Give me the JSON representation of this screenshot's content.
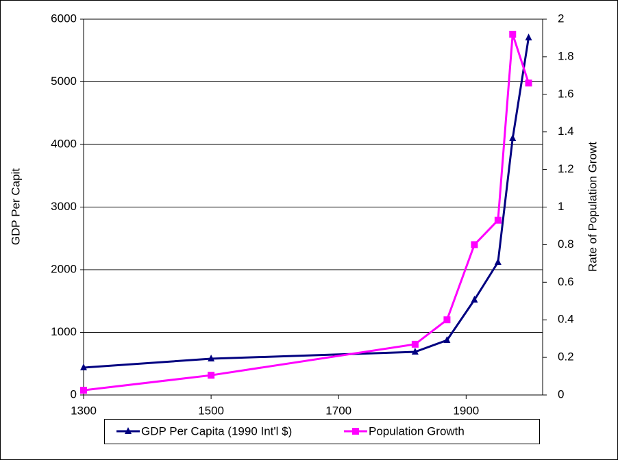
{
  "chart_data": {
    "type": "line",
    "x": [
      1300,
      1500,
      1820,
      1870,
      1913,
      1950,
      1973,
      1998
    ],
    "xlim": [
      1300,
      2020
    ],
    "xticks": [
      1300,
      1500,
      1700,
      1900
    ],
    "ylim": [
      0,
      6000
    ],
    "yticks": [
      0,
      1000,
      2000,
      3000,
      4000,
      5000,
      6000
    ],
    "y2lim": [
      0,
      2
    ],
    "y2ticks": [
      0,
      0.2,
      0.4,
      0.6,
      0.8,
      1,
      1.2,
      1.4,
      1.6,
      1.8,
      2
    ],
    "ylabel": "GDP Per Capit",
    "y2label": "Rate of Population Growt",
    "grid": true,
    "legend": "bottom",
    "series": [
      {
        "name": "GDP Per Capita (1990 Int'l $)",
        "color": "#000080",
        "marker": "triangle",
        "values": [
          437,
          579,
          688,
          874,
          1519,
          2120,
          4098,
          5705
        ]
      },
      {
        "name": "Population Growth",
        "color": "#ff00ff",
        "marker": "square",
        "axis": "y2",
        "values": [
          0.025,
          0.105,
          0.27,
          0.4,
          0.8,
          0.93,
          1.92,
          1.66
        ]
      }
    ]
  }
}
